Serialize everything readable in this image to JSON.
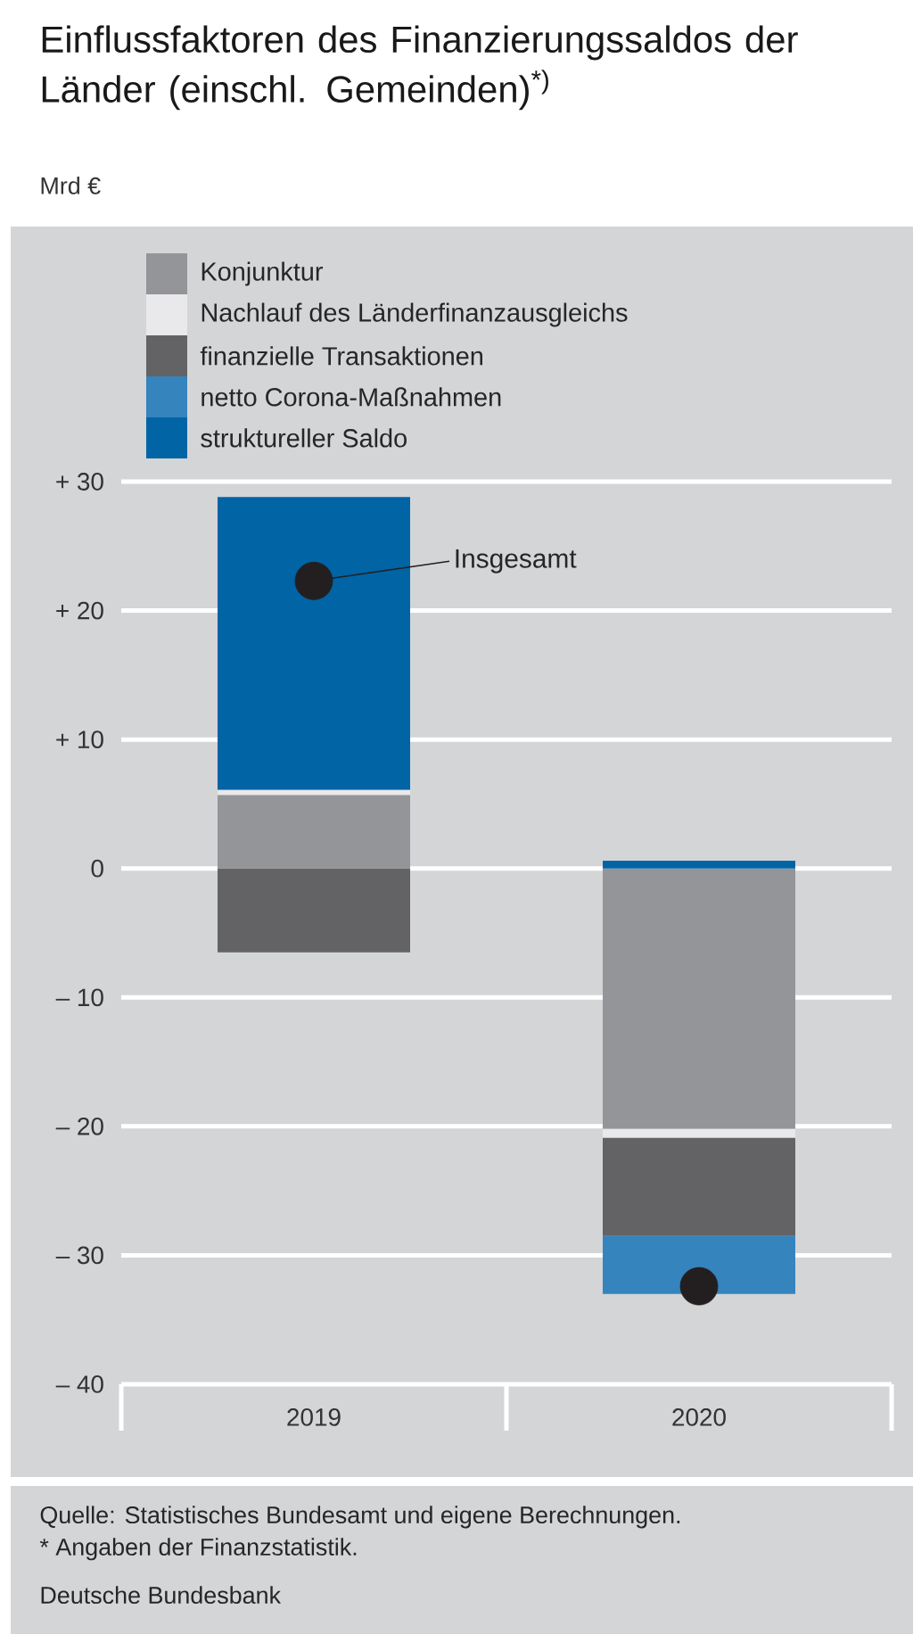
{
  "chart_data": {
    "type": "bar",
    "title": "Einflussfaktoren des Finanzierungssaldos der Länder (einschl. Gemeinden)$^{*)}$",
    "categories": [
      "2019",
      "2020"
    ],
    "stacked": true,
    "series": [
      {
        "name": "Konjunktur",
        "color": "#939598",
        "values": [
          5.7,
          -20.2
        ]
      },
      {
        "name": "Nachlauf des Länderfinanzausgleichs",
        "color": "#e9e9eb",
        "values": [
          0.4,
          -0.7
        ]
      },
      {
        "name": "finanzielle Transaktionen",
        "color": "#636365",
        "values": [
          -6.5,
          -7.6
        ]
      },
      {
        "name": "netto Corona-Maßnahmen",
        "color": "#3584bd",
        "values": [
          null,
          -4.5
        ]
      },
      {
        "name": "struktureller Saldo",
        "color": "#0064a5",
        "values": [
          22.7,
          0.6
        ]
      },
      {
        "name": "Insgesamt",
        "type": "scatter",
        "color": "#231f20",
        "marker": "circle",
        "values": [
          22.3,
          -32.4
        ]
      }
    ],
    "ylim": [
      -40,
      30
    ],
    "yticks": [
      {
        "value": -40,
        "label": "– 40"
      },
      {
        "value": -30,
        "label": "– 30"
      },
      {
        "value": -20,
        "label": "– 20"
      },
      {
        "value": -10,
        "label": "– 10"
      },
      0,
      {
        "value": 10,
        "label": "+ 10"
      },
      {
        "value": 20,
        "label": "+ 20"
      },
      {
        "value": 30,
        "label": "+ 30"
      }
    ],
    "grid": "y",
    "legend": "top",
    "annotations": [
      "Mrd €",
      "Quelle: Statistisches Bundesamt und eigene Berechnungen.",
      "* Angaben der Finanzstatistik.",
      "Deutsche Bundesbank"
    ]
  }
}
